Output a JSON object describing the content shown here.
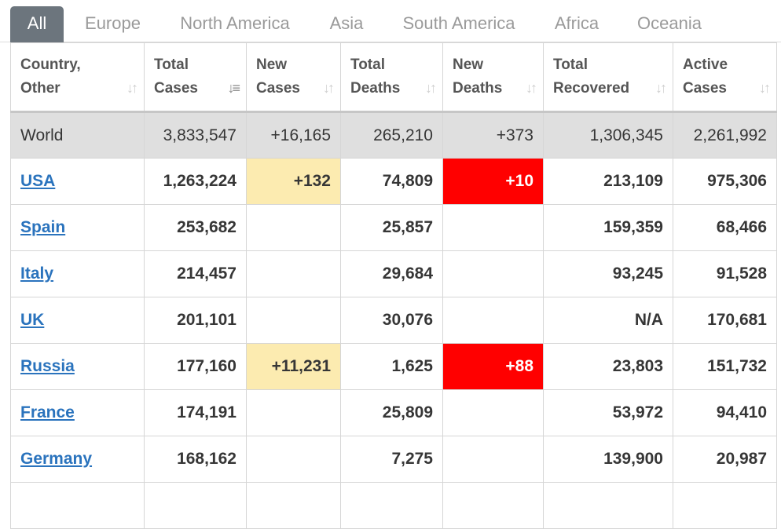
{
  "tabs": [
    "All",
    "Europe",
    "North America",
    "Asia",
    "South America",
    "Africa",
    "Oceania"
  ],
  "active_tab": 0,
  "columns": [
    {
      "line1": "Country,",
      "line2": "Other"
    },
    {
      "line1": "Total",
      "line2": "Cases"
    },
    {
      "line1": "New",
      "line2": "Cases"
    },
    {
      "line1": "Total",
      "line2": "Deaths"
    },
    {
      "line1": "New",
      "line2": "Deaths"
    },
    {
      "line1": "Total",
      "line2": "Recovered"
    },
    {
      "line1": "Active",
      "line2": "Cases"
    }
  ],
  "sorted_column": 1,
  "world": {
    "country": "World",
    "total_cases": "3,833,547",
    "new_cases": "+16,165",
    "total_deaths": "265,210",
    "new_deaths": "+373",
    "total_recovered": "1,306,345",
    "active_cases": "2,261,992"
  },
  "rows": [
    {
      "country": "USA",
      "total_cases": "1,263,224",
      "new_cases": "+132",
      "total_deaths": "74,809",
      "new_deaths": "+10",
      "total_recovered": "213,109",
      "active_cases": "975,306"
    },
    {
      "country": "Spain",
      "total_cases": "253,682",
      "new_cases": "",
      "total_deaths": "25,857",
      "new_deaths": "",
      "total_recovered": "159,359",
      "active_cases": "68,466"
    },
    {
      "country": "Italy",
      "total_cases": "214,457",
      "new_cases": "",
      "total_deaths": "29,684",
      "new_deaths": "",
      "total_recovered": "93,245",
      "active_cases": "91,528"
    },
    {
      "country": "UK",
      "total_cases": "201,101",
      "new_cases": "",
      "total_deaths": "30,076",
      "new_deaths": "",
      "total_recovered": "N/A",
      "active_cases": "170,681"
    },
    {
      "country": "Russia",
      "total_cases": "177,160",
      "new_cases": "+11,231",
      "total_deaths": "1,625",
      "new_deaths": "+88",
      "total_recovered": "23,803",
      "active_cases": "151,732"
    },
    {
      "country": "France",
      "total_cases": "174,191",
      "new_cases": "",
      "total_deaths": "25,809",
      "new_deaths": "",
      "total_recovered": "53,972",
      "active_cases": "94,410"
    },
    {
      "country": "Germany",
      "total_cases": "168,162",
      "new_cases": "",
      "total_deaths": "7,275",
      "new_deaths": "",
      "total_recovered": "139,900",
      "active_cases": "20,987"
    }
  ],
  "colors": {
    "active_tab_bg": "#6c757d",
    "new_cases_highlight": "#fcebb0",
    "new_deaths_highlight": "#ff0000",
    "country_link": "#2a73bd",
    "world_row_bg": "#dfdfdf"
  },
  "icons": {
    "sort": "sort-arrows-icon",
    "sort_active": "sort-descending-icon"
  }
}
